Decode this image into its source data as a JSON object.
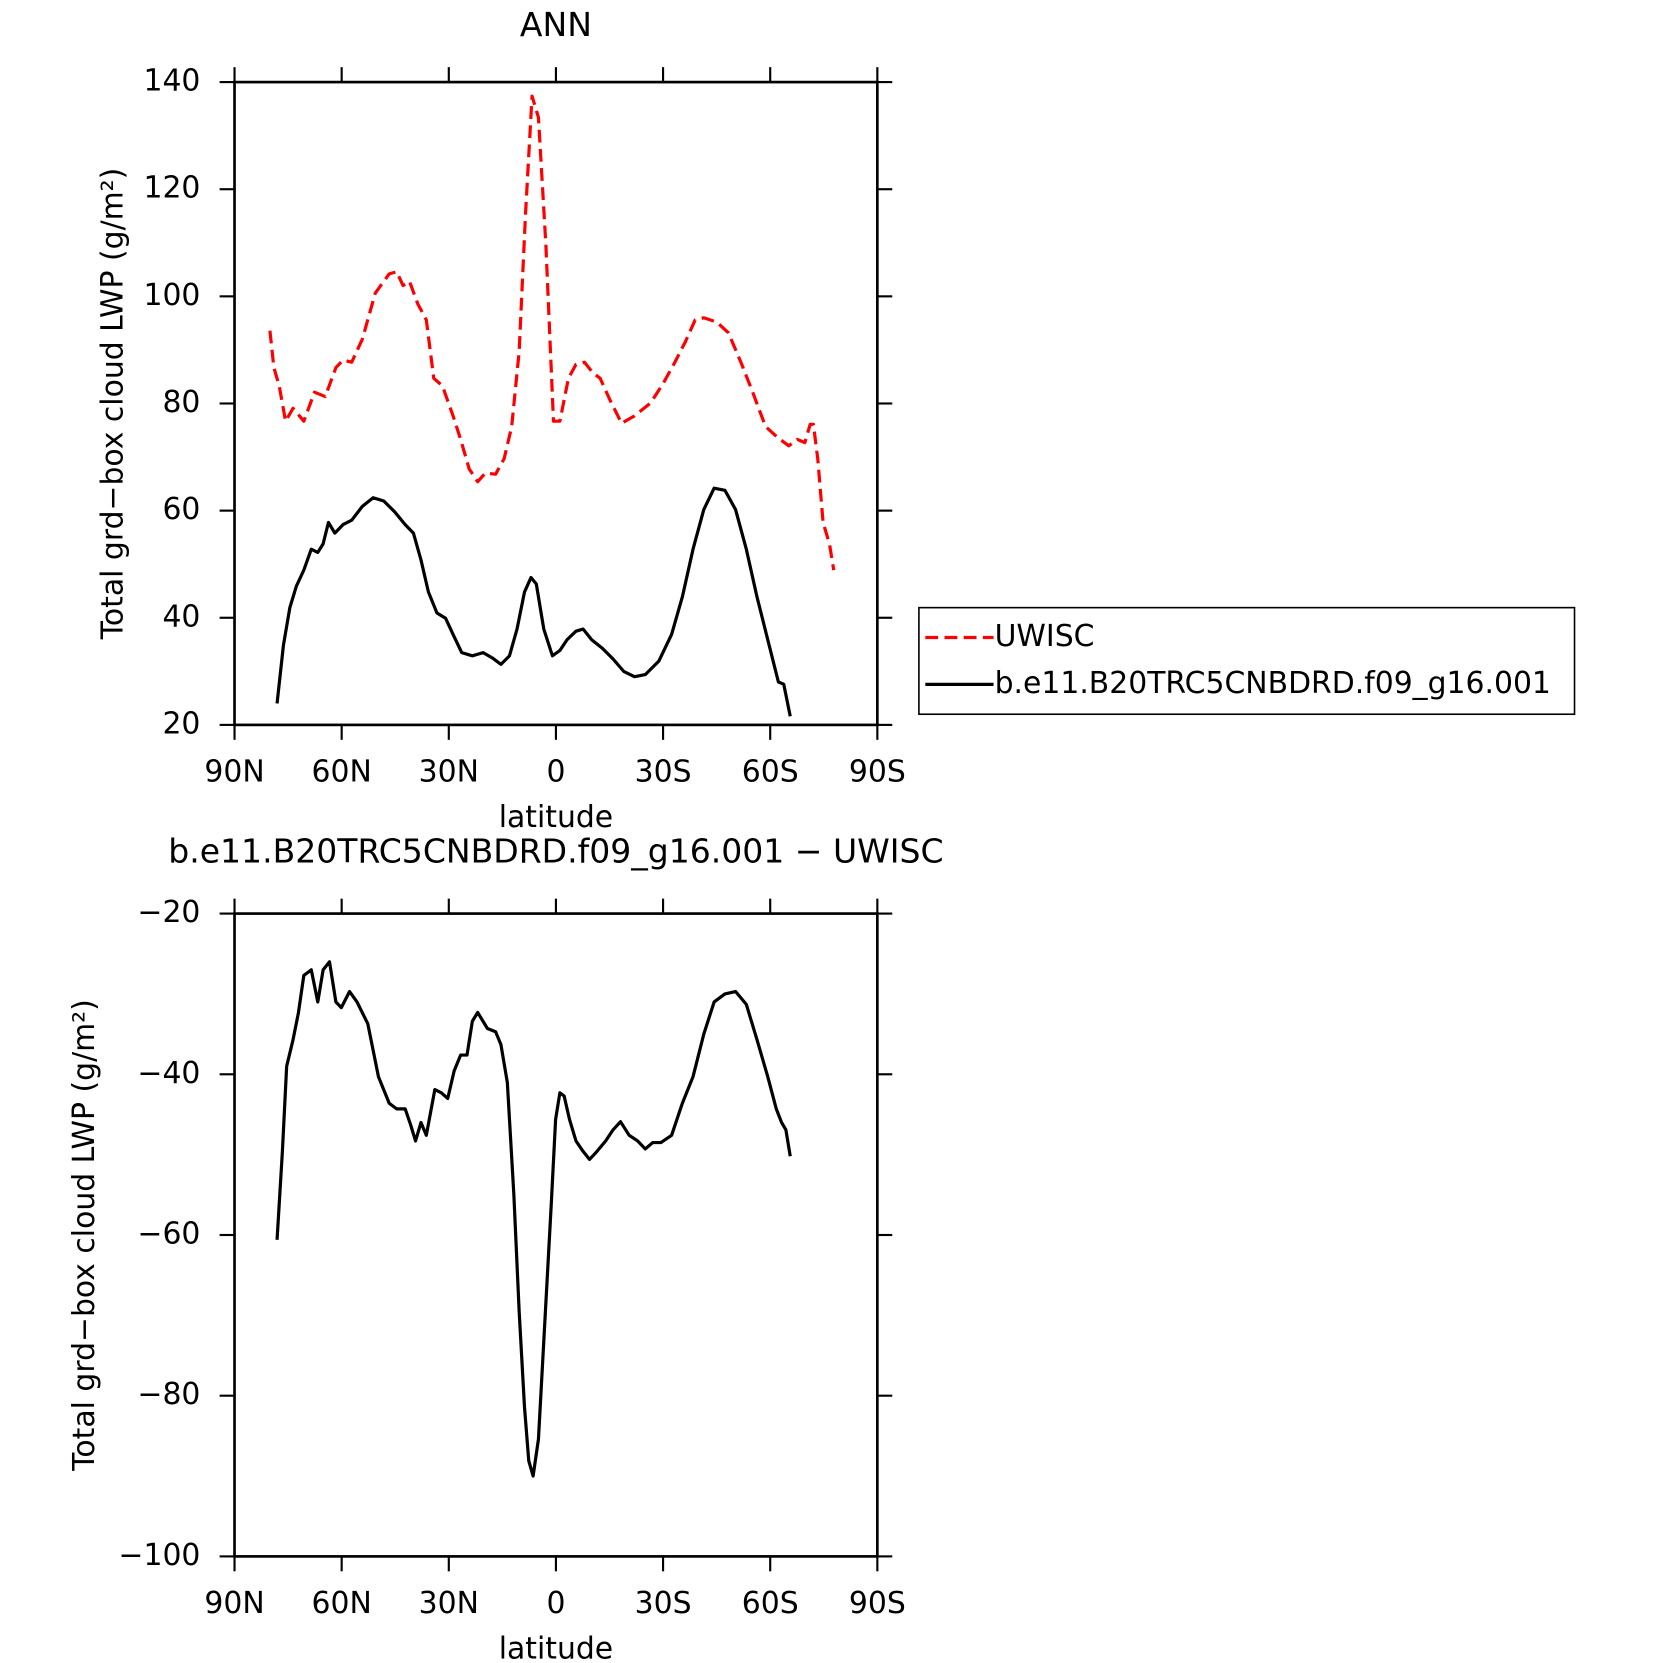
{
  "chart_data": [
    {
      "type": "line",
      "title": "ANN",
      "xlabel": "latitude",
      "ylabel": "Total grd−box cloud LWP (g/m²)",
      "xlim": [
        90,
        -90
      ],
      "ylim": [
        20,
        140
      ],
      "xticks": [
        {
          "value": 90,
          "label": "90N"
        },
        {
          "value": 60,
          "label": "60N"
        },
        {
          "value": 30,
          "label": "30N"
        },
        0,
        {
          "value": -30,
          "label": "30S"
        },
        {
          "value": -60,
          "label": "60S"
        },
        {
          "value": -90,
          "label": "90S"
        }
      ],
      "yticks": [
        20,
        40,
        60,
        80,
        100,
        120,
        140
      ],
      "legend": "right",
      "series": [
        {
          "name": "UWISC",
          "color": "#ff0000",
          "linestyle": "dashed",
          "x": [
            80.1,
            79,
            77.5,
            75.7,
            73.6,
            70.6,
            67.6,
            64.6,
            61.6,
            59.6,
            57.2,
            54.2,
            50.6,
            46.7,
            44.6,
            42.8,
            41.0,
            38.7,
            36.3,
            34.2,
            31.8,
            28.8,
            26.7,
            24.3,
            21.9,
            19.8,
            16.9,
            14.5,
            12.4,
            10.3,
            8.5,
            6.7,
            4.9,
            2.8,
            0.7,
            -1.1,
            -3.5,
            -5.6,
            -8.0,
            -10.4,
            -12.4,
            -15.1,
            -18.4,
            -22.0,
            -26.5,
            -30.0,
            -33.3,
            -36.3,
            -39.0,
            -41.4,
            -45.0,
            -48.3,
            -51.8,
            -55.1,
            -58.7,
            -62.0,
            -65.2,
            -67.6,
            -69.7,
            -71.2,
            -72.1,
            -73.3,
            -74.8,
            -76.6,
            -77.8
          ],
          "values": [
            93.6,
            86.7,
            83.3,
            76.7,
            79.1,
            76.7,
            82.1,
            81.3,
            86.7,
            88.1,
            87.7,
            92.0,
            100.6,
            104.2,
            104.6,
            102.0,
            102.8,
            98.6,
            95.6,
            84.7,
            83.3,
            77.7,
            73.3,
            67.8,
            65.4,
            67.0,
            66.8,
            69.7,
            75.7,
            89.7,
            115.5,
            137.4,
            133.4,
            109.5,
            76.7,
            76.7,
            84.7,
            87.3,
            87.7,
            85.7,
            84.7,
            80.7,
            76.3,
            77.7,
            80.1,
            83.7,
            87.7,
            91.6,
            95.6,
            96.0,
            95.2,
            93.2,
            87.7,
            82.1,
            75.7,
            73.7,
            72.1,
            73.3,
            72.7,
            76.1,
            76.1,
            69.7,
            57.8,
            53.8,
            48.9
          ]
        },
        {
          "name": "b.e11.B20TRC5CNBDRD.f09_g16.001",
          "color": "#000000",
          "linestyle": "solid",
          "x": [
            78.1,
            76.3,
            74.5,
            72.7,
            70.6,
            68.5,
            66.7,
            65.2,
            63.7,
            61.9,
            59.6,
            57.2,
            54.2,
            51.2,
            48.2,
            45.2,
            42.2,
            39.9,
            37.8,
            35.7,
            33.3,
            30.9,
            28.8,
            26.4,
            23.4,
            20.4,
            17.8,
            15.4,
            13.0,
            10.9,
            8.8,
            7.0,
            5.5,
            3.4,
            1.0,
            -1.1,
            -3.1,
            -5.6,
            -7.6,
            -10.0,
            -13.0,
            -16.0,
            -19.0,
            -22.0,
            -25.0,
            -28.8,
            -32.4,
            -35.4,
            -38.4,
            -41.4,
            -44.3,
            -47.3,
            -50.3,
            -53.3,
            -56.3,
            -59.3,
            -62.3,
            -63.8,
            -65.6
          ],
          "values": [
            24.0,
            34.9,
            41.9,
            45.9,
            48.9,
            52.8,
            52.2,
            53.8,
            57.8,
            55.8,
            57.4,
            58.2,
            60.8,
            62.4,
            61.8,
            59.8,
            57.4,
            55.8,
            50.8,
            44.8,
            40.9,
            39.9,
            36.9,
            33.5,
            32.9,
            33.5,
            32.5,
            31.3,
            32.9,
            37.9,
            44.8,
            47.5,
            46.3,
            37.9,
            32.9,
            33.9,
            35.9,
            37.5,
            37.9,
            35.9,
            34.3,
            32.3,
            30.0,
            29.0,
            29.4,
            31.9,
            36.9,
            43.9,
            52.8,
            60.2,
            64.2,
            63.8,
            60.2,
            52.8,
            43.9,
            35.9,
            28.0,
            27.6,
            21.6
          ]
        }
      ]
    },
    {
      "type": "line",
      "title": "b.e11.B20TRC5CNBDRD.f09_g16.001 − UWISC",
      "xlabel": "latitude",
      "ylabel": "Total grd−box cloud LWP (g/m²)",
      "xlim": [
        90,
        -90
      ],
      "ylim": [
        -100,
        -20
      ],
      "xticks": [
        {
          "value": 90,
          "label": "90N"
        },
        {
          "value": 60,
          "label": "60N"
        },
        {
          "value": 30,
          "label": "30N"
        },
        0,
        {
          "value": -30,
          "label": "30S"
        },
        {
          "value": -60,
          "label": "60S"
        },
        {
          "value": -90,
          "label": "90S"
        }
      ],
      "yticks": [
        {
          "value": -100,
          "label": "−100"
        },
        {
          "value": -80,
          "label": "−80"
        },
        {
          "value": -60,
          "label": "−60"
        },
        {
          "value": -40,
          "label": "−40"
        },
        {
          "value": -20,
          "label": "−20"
        }
      ],
      "x": [
        78.1,
        76.6,
        75.4,
        73.6,
        72.1,
        70.6,
        68.5,
        66.7,
        65.2,
        63.4,
        61.6,
        60.1,
        57.8,
        55.7,
        52.7,
        49.7,
        46.7,
        44.6,
        42.2,
        40.7,
        39.3,
        37.8,
        36.3,
        33.9,
        32.1,
        30.3,
        28.5,
        26.7,
        24.9,
        23.4,
        21.9,
        19.2,
        16.9,
        15.4,
        13.6,
        11.8,
        10.3,
        8.8,
        7.6,
        6.4,
        4.9,
        3.1,
        1.3,
        0.1,
        -1.1,
        -2.3,
        -3.8,
        -5.6,
        -7.6,
        -9.4,
        -11.5,
        -13.9,
        -16.0,
        -18.1,
        -20.5,
        -22.9,
        -25.0,
        -27.1,
        -29.4,
        -32.4,
        -35.4,
        -38.4,
        -41.4,
        -44.3,
        -47.3,
        -50.3,
        -53.3,
        -56.3,
        -59.3,
        -61.7,
        -63.2,
        -64.4,
        -65.6
      ],
      "series": [
        {
          "color": "#000000",
          "linestyle": "solid",
          "values": [
            -60.6,
            -49.6,
            -39.0,
            -35.7,
            -32.3,
            -27.7,
            -27.0,
            -31.0,
            -27.0,
            -26.0,
            -31.0,
            -31.7,
            -29.7,
            -31.0,
            -33.7,
            -40.3,
            -43.6,
            -44.3,
            -44.3,
            -46.3,
            -48.3,
            -46.0,
            -47.6,
            -41.9,
            -42.3,
            -43.0,
            -39.6,
            -37.6,
            -37.6,
            -33.4,
            -32.3,
            -34.3,
            -34.7,
            -36.3,
            -41.0,
            -54.9,
            -69.5,
            -81.4,
            -88.1,
            -90.0,
            -85.4,
            -70.8,
            -56.2,
            -45.6,
            -42.3,
            -42.7,
            -45.6,
            -48.3,
            -49.6,
            -50.6,
            -49.6,
            -48.3,
            -46.9,
            -45.9,
            -47.6,
            -48.3,
            -49.3,
            -48.5,
            -48.5,
            -47.6,
            -43.6,
            -40.3,
            -35.0,
            -31.0,
            -30.0,
            -29.7,
            -31.3,
            -35.7,
            -40.3,
            -44.3,
            -46.0,
            -46.9,
            -50.2
          ]
        }
      ]
    }
  ]
}
